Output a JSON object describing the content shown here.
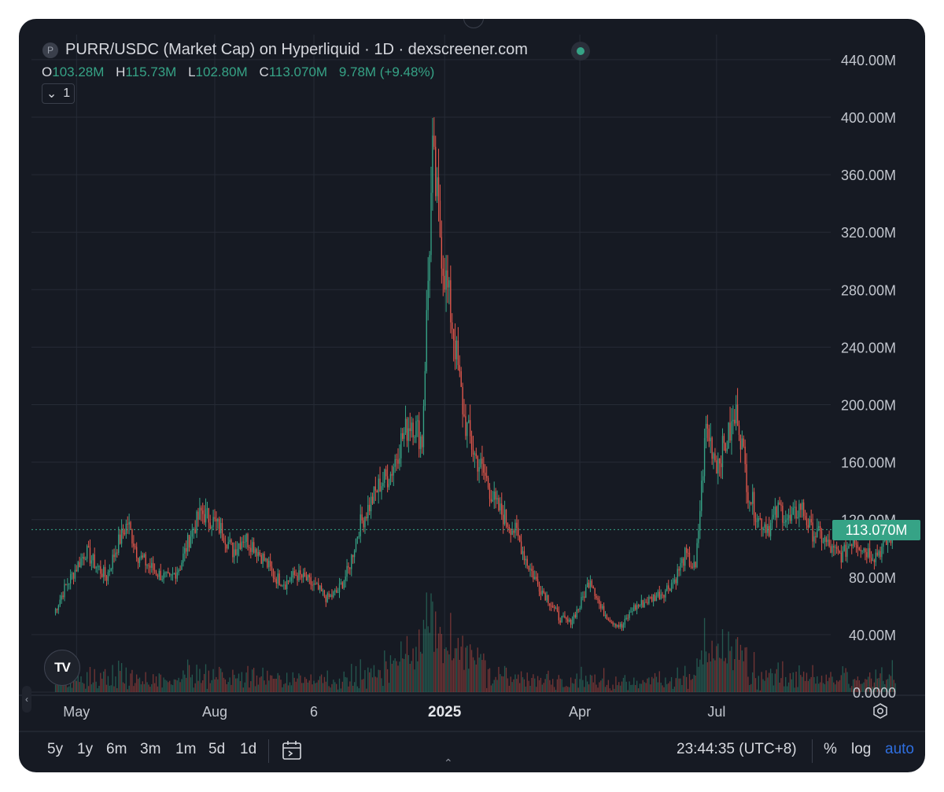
{
  "header": {
    "symbol_badge": "P",
    "title": "PURR/USDC (Market Cap) on Hyperliquid · 1D · dexscreener.com",
    "open_label": "O",
    "open_value": "103.28M",
    "high_label": "H",
    "high_value": "115.73M",
    "low_label": "L",
    "low_value": "102.80M",
    "close_label": "C",
    "close_value": "113.070M",
    "change": "9.78M (+9.48%)",
    "collapse_count": "1"
  },
  "price_tag": "113.070M",
  "toolbar": {
    "timeframes": [
      "5y",
      "1y",
      "6m",
      "3m",
      "1m",
      "5d",
      "1d"
    ],
    "clock": "23:44:35 (UTC+8)",
    "percent_label": "%",
    "log_label": "log",
    "auto_label": "auto"
  },
  "colors": {
    "up": "#36a386",
    "down": "#e2574c",
    "background": "#161a23",
    "grid": "#262b36",
    "axis_text": "#c2c6ce"
  },
  "chart_data": {
    "type": "candlestick",
    "title": "PURR/USDC (Market Cap) on Hyperliquid · 1D · dexscreener.com",
    "y_ticks": [
      0,
      40,
      80,
      120,
      160,
      200,
      240,
      280,
      320,
      360,
      400,
      440
    ],
    "y_tick_labels": [
      "0.0000",
      "40.00M",
      "80.00M",
      "120.00M",
      "160.00M",
      "200.00M",
      "240.00M",
      "280.00M",
      "320.00M",
      "360.00M",
      "400.00M",
      "440.00M"
    ],
    "ylim": [
      0,
      440
    ],
    "y_unit": "M",
    "x_tick_labels": [
      "May",
      "Aug",
      "6",
      "2025",
      "Apr",
      "Jul"
    ],
    "x_tick_dates": [
      "2024-05-01",
      "2024-08-01",
      "2024-10-06",
      "2025-01-01",
      "2025-04-01",
      "2025-07-01"
    ],
    "x_range": [
      "2024-04-01",
      "2025-09-15"
    ],
    "last_close": 113.07,
    "grid": true,
    "volume_pane": true,
    "close_series_approx": {
      "interval_days": 7,
      "start": "2024-04-16",
      "values": [
        55,
        72,
        85,
        98,
        88,
        80,
        102,
        118,
        95,
        88,
        82,
        78,
        88,
        110,
        125,
        120,
        112,
        98,
        108,
        102,
        92,
        80,
        76,
        82,
        78,
        72,
        65,
        70,
        85,
        115,
        130,
        145,
        152,
        175,
        190,
        175,
        370,
        300,
        250,
        190,
        165,
        150,
        130,
        120,
        110,
        90,
        75,
        65,
        52,
        48,
        60,
        80,
        58,
        50,
        45,
        58,
        62,
        66,
        70,
        78,
        95,
        85,
        185,
        160,
        175,
        195,
        140,
        120,
        115,
        128,
        118,
        130,
        112,
        108,
        98,
        95,
        108,
        100,
        95,
        102,
        113.07
      ]
    }
  }
}
